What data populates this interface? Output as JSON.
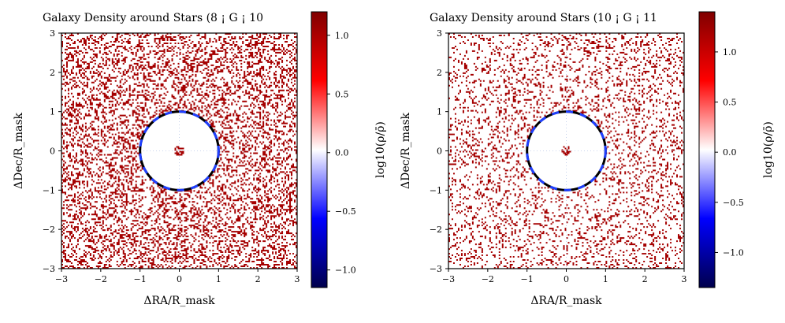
{
  "chart_data": [
    {
      "type": "heatmap",
      "title": "Galaxy Density around Stars (8 ¡ G ¡ 10",
      "xlabel": "ΔRA/R_mask",
      "ylabel": "ΔDec/R_mask",
      "xlim": [
        -3,
        3
      ],
      "ylim": [
        -3,
        3
      ],
      "xticks": [
        "−3",
        "−2",
        "−1",
        "0",
        "1",
        "2",
        "3"
      ],
      "yticks": [
        "−3",
        "−2",
        "−1",
        "0",
        "1",
        "2",
        "3"
      ],
      "colorbar": {
        "label": "log10(ρ/ρ̄)",
        "range": [
          -1.15,
          1.2
        ],
        "ticks": [
          -1.0,
          -0.5,
          0.0,
          0.5,
          1.0
        ],
        "tick_labels": [
          "−1.0",
          "−0.5",
          "0.0",
          "0.5",
          "1.0"
        ],
        "colormap": "seismic"
      },
      "mask_circle": {
        "center": [
          0,
          0
        ],
        "radius": 1,
        "style": "dashed",
        "colors": [
          "#000000",
          "#1f3fff"
        ]
      },
      "pixel_fill_fraction": 0.3,
      "pixel_value": 1.2
    },
    {
      "type": "heatmap",
      "title": "Galaxy Density around Stars (10 ¡ G ¡ 11",
      "xlabel": "ΔRA/R_mask",
      "ylabel": "ΔDec/R_mask",
      "xlim": [
        -3,
        3
      ],
      "ylim": [
        -3,
        3
      ],
      "xticks": [
        "−3",
        "−2",
        "−1",
        "0",
        "1",
        "2",
        "3"
      ],
      "yticks": [
        "−3",
        "−2",
        "−1",
        "0",
        "1",
        "2",
        "3"
      ],
      "colorbar": {
        "label": "log10(ρ/ρ̄)",
        "range": [
          -1.35,
          1.4
        ],
        "ticks": [
          -1.0,
          -0.5,
          0.0,
          0.5,
          1.0
        ],
        "tick_labels": [
          "−1.0",
          "−0.5",
          "0.0",
          "0.5",
          "1.0"
        ],
        "colormap": "seismic"
      },
      "mask_circle": {
        "center": [
          0,
          0
        ],
        "radius": 1,
        "style": "dashed",
        "colors": [
          "#000000",
          "#1f3fff"
        ]
      },
      "pixel_fill_fraction": 0.17,
      "pixel_value": 1.4
    }
  ]
}
